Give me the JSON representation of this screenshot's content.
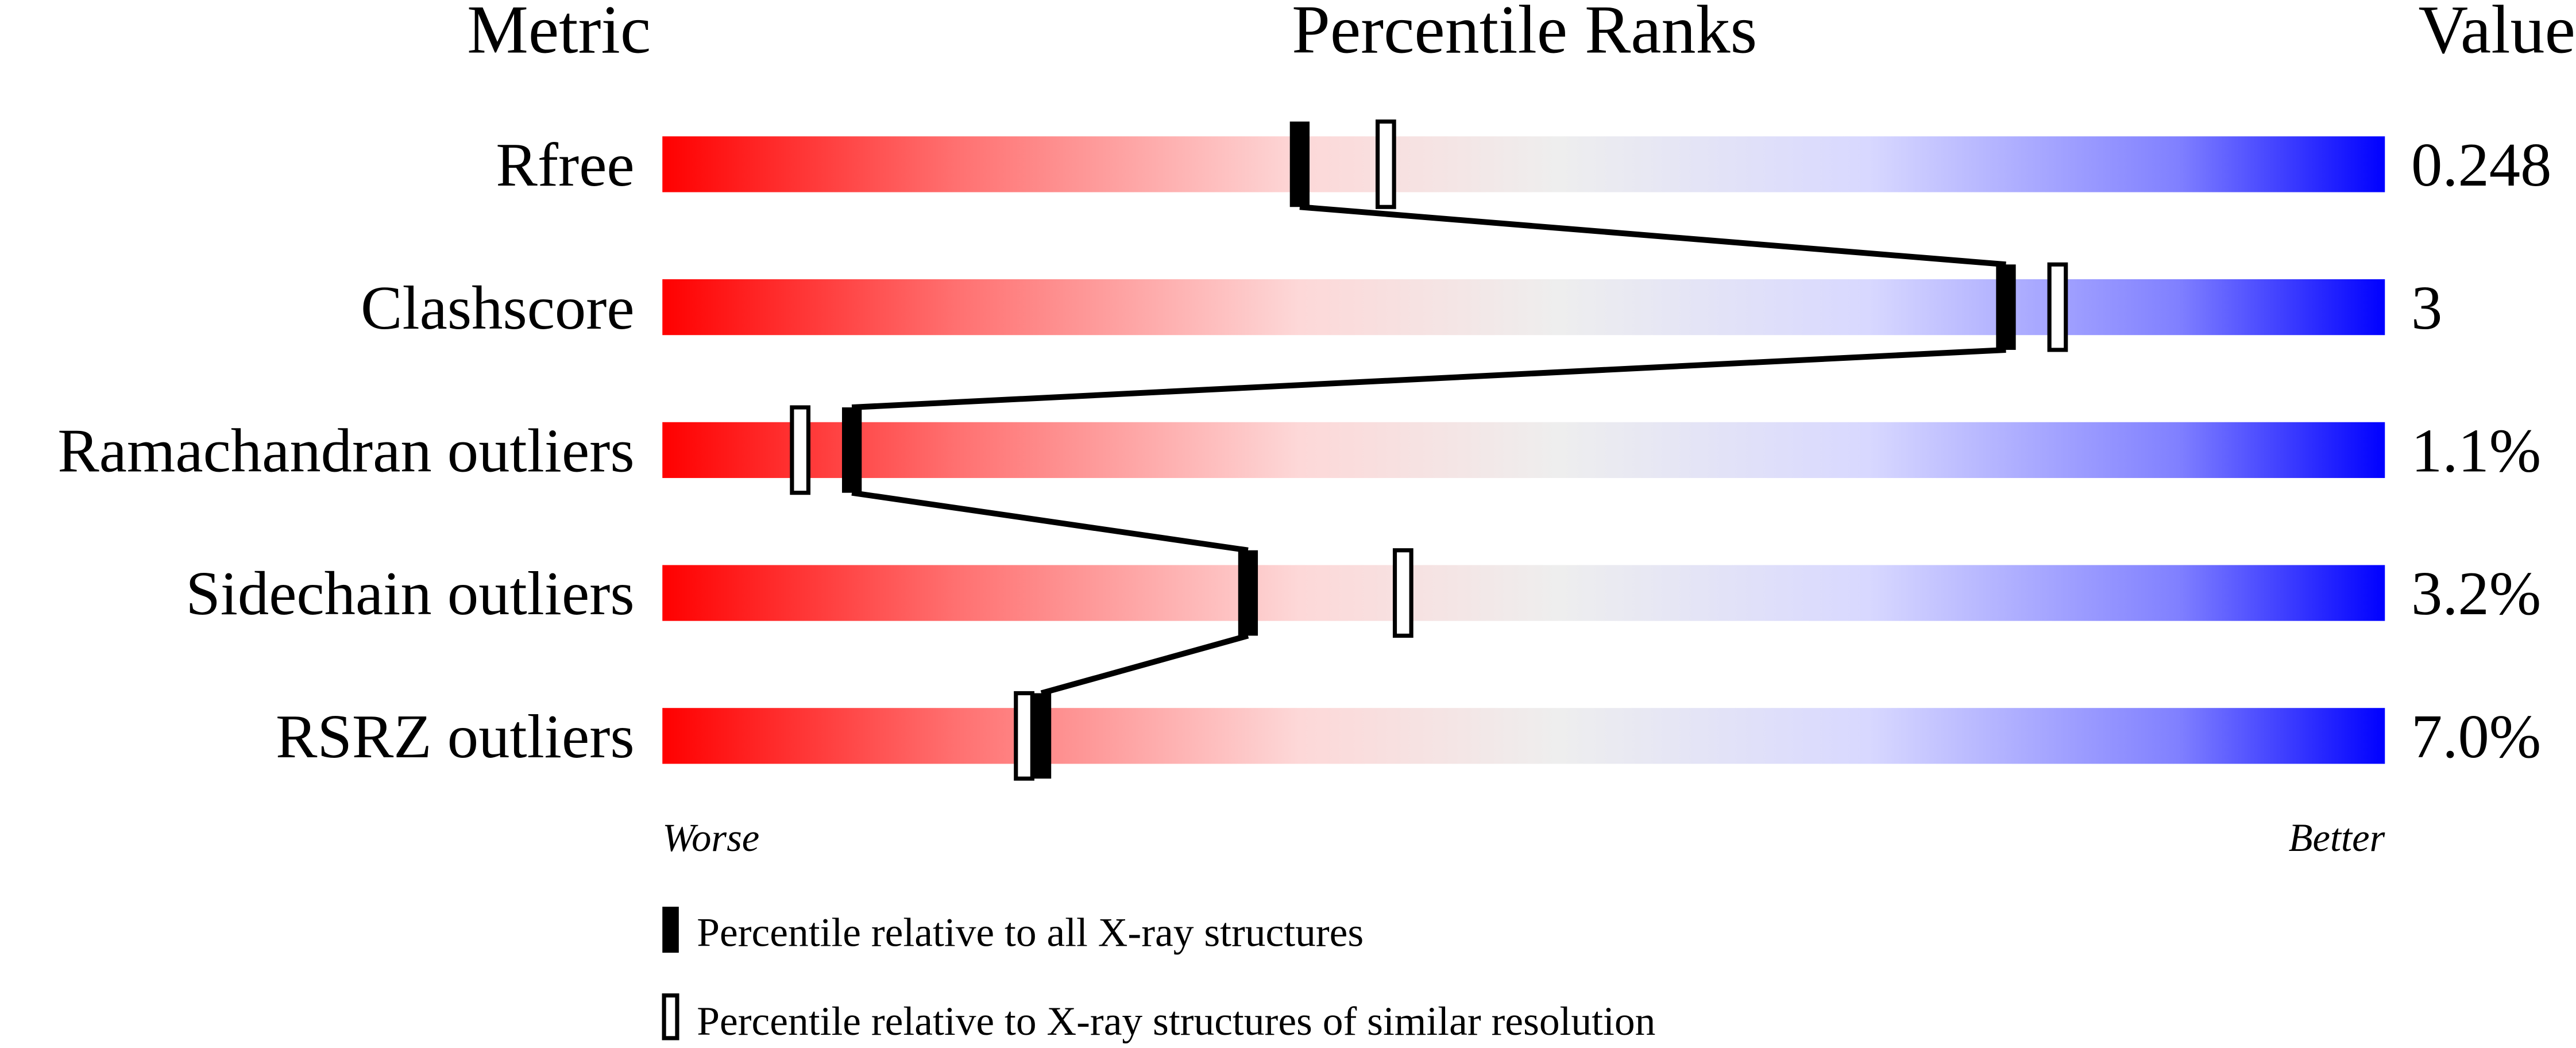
{
  "chart_data": {
    "type": "bar",
    "title": "",
    "headers": {
      "metric": "Metric",
      "ranks": "Percentile Ranks",
      "value": "Value"
    },
    "xlim": [
      0,
      100
    ],
    "axis_labels": {
      "left": "Worse",
      "right": "Better"
    },
    "gradient_colors": [
      "#ff0000",
      "#ff7070",
      "#fdd8d8",
      "#eeeeee",
      "#d8d8ff",
      "#8080ff",
      "#0000ff"
    ],
    "categories": [
      "Rfree",
      "Clashscore",
      "Ramachandran outliers",
      "Sidechain outliers",
      "RSRZ outliers"
    ],
    "values": [
      "0.248",
      "3",
      "1.1%",
      "3.2%",
      "7.0%"
    ],
    "series": [
      {
        "name": "Percentile relative to all X-ray structures",
        "marker": "filled",
        "values": [
          37,
          78,
          11,
          34,
          22
        ]
      },
      {
        "name": "Percentile relative to X-ray structures of similar resolution",
        "marker": "open",
        "values": [
          42,
          81,
          8,
          43,
          21
        ]
      }
    ],
    "legend_position": "bottom-left"
  }
}
